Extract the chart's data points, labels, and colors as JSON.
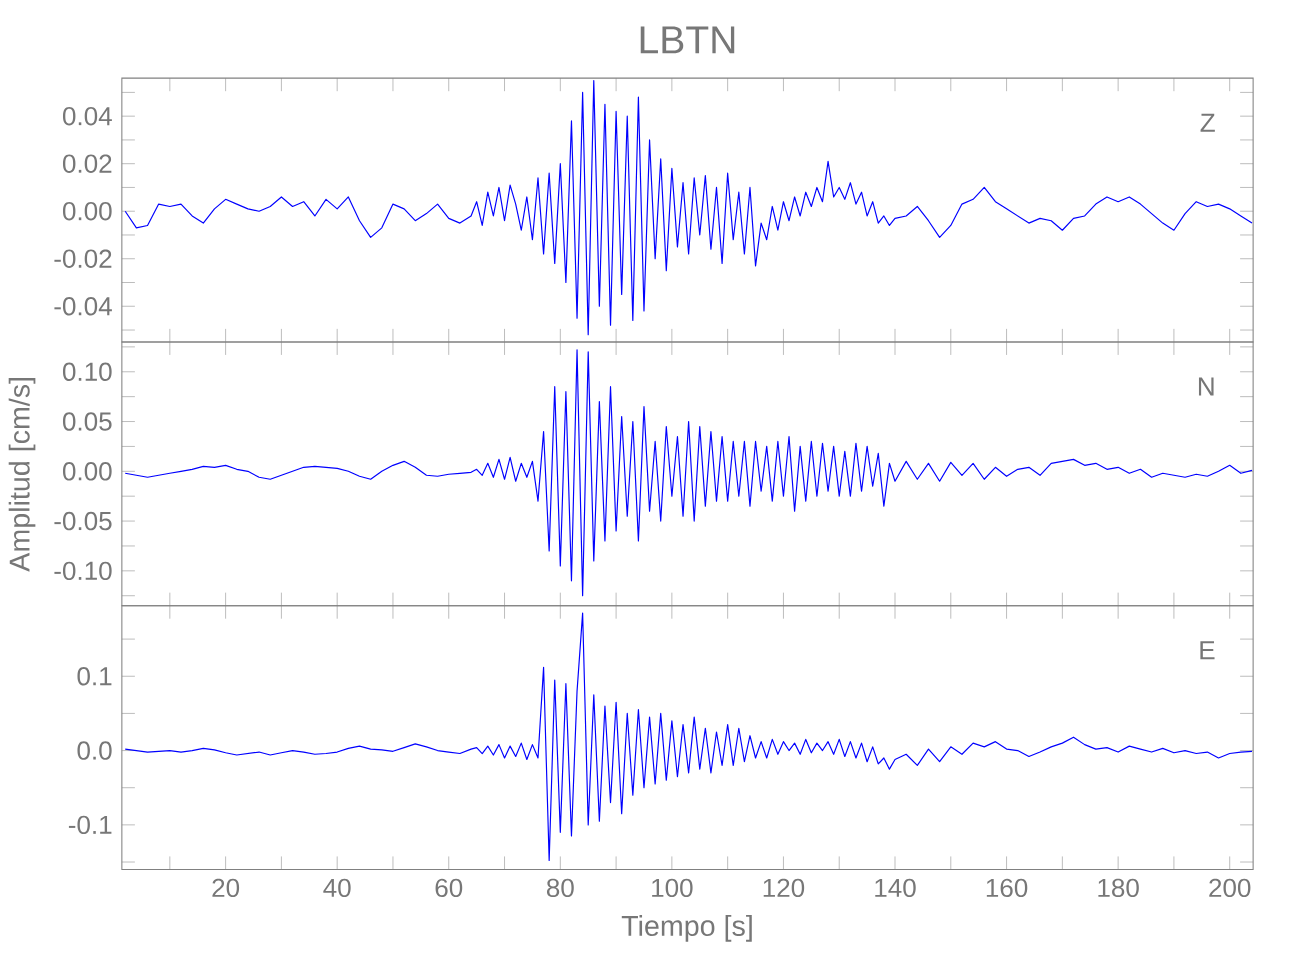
{
  "chart_data": [
    {
      "type": "line",
      "title": "LBTN",
      "annotations": [
        "Z"
      ],
      "color": "#0000ff",
      "tick_labels": "y",
      "xlim": [
        1.4,
        204.2
      ],
      "xticks": [
        {
          "value": 10,
          "label": null
        },
        {
          "value": 20,
          "label": null
        },
        {
          "value": 30,
          "label": null
        },
        {
          "value": 40,
          "label": null
        },
        {
          "value": 50,
          "label": null
        },
        {
          "value": 60,
          "label": null
        },
        {
          "value": 70,
          "label": null
        },
        {
          "value": 80,
          "label": null
        },
        {
          "value": 90,
          "label": null
        },
        {
          "value": 100,
          "label": null
        },
        {
          "value": 110,
          "label": null
        },
        {
          "value": 120,
          "label": null
        },
        {
          "value": 130,
          "label": null
        },
        {
          "value": 140,
          "label": null
        },
        {
          "value": 150,
          "label": null
        },
        {
          "value": 160,
          "label": null
        },
        {
          "value": 170,
          "label": null
        },
        {
          "value": 180,
          "label": null
        },
        {
          "value": 190,
          "label": null
        },
        {
          "value": 200,
          "label": null
        }
      ],
      "ylim": [
        -0.055,
        0.056
      ],
      "yticks": [
        {
          "value": -0.05,
          "label": null
        },
        {
          "value": -0.04,
          "label": "-0.04"
        },
        {
          "value": -0.03,
          "label": null
        },
        {
          "value": -0.02,
          "label": "-0.02"
        },
        {
          "value": -0.01,
          "label": null
        },
        {
          "value": 0,
          "label": "0.00"
        },
        {
          "value": 0.01,
          "label": null
        },
        {
          "value": 0.02,
          "label": "0.02"
        },
        {
          "value": 0.03,
          "label": null
        },
        {
          "value": 0.04,
          "label": "0.04"
        },
        {
          "value": 0.05,
          "label": null
        }
      ],
      "x": [
        2,
        4,
        6,
        8,
        10,
        12,
        14,
        16,
        18,
        20,
        22,
        24,
        26,
        28,
        30,
        32,
        34,
        36,
        38,
        40,
        42,
        44,
        46,
        48,
        50,
        52,
        54,
        56,
        58,
        60,
        62,
        64,
        65,
        66,
        67,
        68,
        69,
        70,
        71,
        72,
        73,
        74,
        75,
        76,
        77,
        78,
        79,
        80,
        81,
        82,
        83,
        84,
        85,
        86,
        87,
        88,
        89,
        90,
        91,
        92,
        93,
        94,
        95,
        96,
        97,
        98,
        99,
        100,
        101,
        102,
        103,
        104,
        105,
        106,
        107,
        108,
        109,
        110,
        111,
        112,
        113,
        114,
        115,
        116,
        117,
        118,
        119,
        120,
        121,
        122,
        123,
        124,
        125,
        126,
        127,
        128,
        129,
        130,
        131,
        132,
        133,
        134,
        135,
        136,
        137,
        138,
        139,
        140,
        142,
        144,
        146,
        148,
        150,
        152,
        154,
        156,
        158,
        160,
        162,
        164,
        166,
        168,
        170,
        172,
        174,
        176,
        178,
        180,
        182,
        184,
        186,
        188,
        190,
        192,
        194,
        196,
        198,
        200,
        202,
        204
      ],
      "values": [
        0.0,
        -0.007,
        -0.006,
        0.003,
        0.002,
        0.003,
        -0.002,
        -0.005,
        0.001,
        0.005,
        0.003,
        0.001,
        0.0,
        0.002,
        0.006,
        0.002,
        0.004,
        -0.002,
        0.005,
        0.001,
        0.006,
        -0.004,
        -0.011,
        -0.007,
        0.003,
        0.001,
        -0.004,
        -0.001,
        0.003,
        -0.003,
        -0.005,
        -0.002,
        0.004,
        -0.006,
        0.008,
        -0.002,
        0.01,
        -0.004,
        0.011,
        0.003,
        -0.008,
        0.006,
        -0.012,
        0.014,
        -0.018,
        0.016,
        -0.022,
        0.02,
        -0.03,
        0.038,
        -0.045,
        0.05,
        -0.052,
        0.055,
        -0.04,
        0.045,
        -0.048,
        0.042,
        -0.035,
        0.04,
        -0.046,
        0.048,
        -0.042,
        0.03,
        -0.02,
        0.022,
        -0.025,
        0.018,
        -0.015,
        0.012,
        -0.018,
        0.014,
        -0.01,
        0.015,
        -0.016,
        0.01,
        -0.022,
        0.016,
        -0.012,
        0.008,
        -0.018,
        0.01,
        -0.023,
        -0.005,
        -0.012,
        0.002,
        -0.008,
        0.004,
        -0.004,
        0.006,
        -0.002,
        0.008,
        0.002,
        0.01,
        0.004,
        0.021,
        0.006,
        0.01,
        0.005,
        0.012,
        0.003,
        0.008,
        -0.002,
        0.004,
        -0.005,
        -0.002,
        -0.006,
        -0.003,
        -0.002,
        0.002,
        -0.004,
        -0.011,
        -0.006,
        0.003,
        0.005,
        0.01,
        0.004,
        0.001,
        -0.002,
        -0.005,
        -0.003,
        -0.004,
        -0.008,
        -0.003,
        -0.002,
        0.003,
        0.006,
        0.004,
        0.006,
        0.003,
        -0.001,
        -0.005,
        -0.008,
        -0.001,
        0.004,
        0.002,
        0.003,
        0.001,
        -0.002,
        -0.005
      ]
    },
    {
      "type": "line",
      "ylabel": "Amplitud  [cm/s]",
      "annotations": [
        "N"
      ],
      "color": "#0000ff",
      "tick_labels": "y",
      "xlim": [
        1.4,
        204.2
      ],
      "xticks": [
        {
          "value": 10,
          "label": null
        },
        {
          "value": 20,
          "label": null
        },
        {
          "value": 30,
          "label": null
        },
        {
          "value": 40,
          "label": null
        },
        {
          "value": 50,
          "label": null
        },
        {
          "value": 60,
          "label": null
        },
        {
          "value": 70,
          "label": null
        },
        {
          "value": 80,
          "label": null
        },
        {
          "value": 90,
          "label": null
        },
        {
          "value": 100,
          "label": null
        },
        {
          "value": 110,
          "label": null
        },
        {
          "value": 120,
          "label": null
        },
        {
          "value": 130,
          "label": null
        },
        {
          "value": 140,
          "label": null
        },
        {
          "value": 150,
          "label": null
        },
        {
          "value": 160,
          "label": null
        },
        {
          "value": 170,
          "label": null
        },
        {
          "value": 180,
          "label": null
        },
        {
          "value": 190,
          "label": null
        },
        {
          "value": 200,
          "label": null
        }
      ],
      "ylim": [
        -0.135,
        0.13
      ],
      "yticks": [
        {
          "value": -0.125,
          "label": null
        },
        {
          "value": -0.1,
          "label": "-0.10"
        },
        {
          "value": -0.075,
          "label": null
        },
        {
          "value": -0.05,
          "label": "-0.05"
        },
        {
          "value": -0.025,
          "label": null
        },
        {
          "value": 0,
          "label": "0.00"
        },
        {
          "value": 0.025,
          "label": null
        },
        {
          "value": 0.05,
          "label": "0.05"
        },
        {
          "value": 0.075,
          "label": null
        },
        {
          "value": 0.1,
          "label": "0.10"
        },
        {
          "value": 0.125,
          "label": null
        }
      ],
      "x": [
        2,
        4,
        6,
        8,
        10,
        12,
        14,
        16,
        18,
        20,
        22,
        24,
        26,
        28,
        30,
        32,
        34,
        36,
        38,
        40,
        42,
        44,
        46,
        48,
        50,
        52,
        54,
        56,
        58,
        60,
        62,
        64,
        65,
        66,
        67,
        68,
        69,
        70,
        71,
        72,
        73,
        74,
        75,
        76,
        77,
        78,
        79,
        80,
        81,
        82,
        83,
        84,
        85,
        86,
        87,
        88,
        89,
        90,
        91,
        92,
        93,
        94,
        95,
        96,
        97,
        98,
        99,
        100,
        101,
        102,
        103,
        104,
        105,
        106,
        107,
        108,
        109,
        110,
        111,
        112,
        113,
        114,
        115,
        116,
        117,
        118,
        119,
        120,
        121,
        122,
        123,
        124,
        125,
        126,
        127,
        128,
        129,
        130,
        131,
        132,
        133,
        134,
        135,
        136,
        137,
        138,
        139,
        140,
        142,
        144,
        146,
        148,
        150,
        152,
        154,
        156,
        158,
        160,
        162,
        164,
        166,
        168,
        170,
        172,
        174,
        176,
        178,
        180,
        182,
        184,
        186,
        188,
        190,
        192,
        194,
        196,
        198,
        200,
        202,
        204
      ],
      "values": [
        -0.002,
        -0.004,
        -0.006,
        -0.004,
        -0.002,
        0.0,
        0.002,
        0.005,
        0.004,
        0.006,
        0.002,
        0.0,
        -0.006,
        -0.008,
        -0.004,
        0.0,
        0.004,
        0.005,
        0.004,
        0.003,
        0.0,
        -0.005,
        -0.008,
        0.0,
        0.006,
        0.01,
        0.004,
        -0.004,
        -0.005,
        -0.003,
        -0.002,
        -0.001,
        0.002,
        -0.004,
        0.008,
        -0.006,
        0.012,
        -0.008,
        0.014,
        -0.01,
        0.008,
        -0.006,
        0.01,
        -0.03,
        0.04,
        -0.08,
        0.085,
        -0.095,
        0.08,
        -0.11,
        0.122,
        -0.125,
        0.12,
        -0.09,
        0.07,
        -0.07,
        0.085,
        -0.06,
        0.055,
        -0.045,
        0.05,
        -0.07,
        0.065,
        -0.04,
        0.03,
        -0.05,
        0.045,
        -0.025,
        0.035,
        -0.045,
        0.05,
        -0.05,
        0.045,
        -0.035,
        0.04,
        -0.03,
        0.035,
        -0.03,
        0.03,
        -0.025,
        0.03,
        -0.035,
        0.03,
        -0.02,
        0.025,
        -0.03,
        0.03,
        -0.025,
        0.035,
        -0.04,
        0.025,
        -0.03,
        0.03,
        -0.025,
        0.028,
        -0.02,
        0.025,
        -0.025,
        0.02,
        -0.025,
        0.028,
        -0.02,
        0.025,
        -0.015,
        0.018,
        -0.035,
        0.008,
        -0.01,
        0.01,
        -0.008,
        0.008,
        -0.01,
        0.009,
        -0.004,
        0.008,
        -0.008,
        0.004,
        -0.005,
        0.002,
        0.004,
        -0.004,
        0.008,
        0.01,
        0.012,
        0.006,
        0.008,
        0.002,
        0.004,
        -0.002,
        0.002,
        -0.006,
        -0.002,
        -0.004,
        -0.006,
        -0.003,
        -0.005,
        0.0,
        0.006,
        -0.002,
        0.001
      ]
    },
    {
      "type": "line",
      "xlabel": "Tiempo  [s]",
      "annotations": [
        "E"
      ],
      "color": "#0000ff",
      "xlim": [
        1.4,
        204.2
      ],
      "xticks": [
        {
          "value": 10,
          "label": null
        },
        {
          "value": 20,
          "label": "20"
        },
        {
          "value": 30,
          "label": null
        },
        {
          "value": 40,
          "label": "40"
        },
        {
          "value": 50,
          "label": null
        },
        {
          "value": 60,
          "label": "60"
        },
        {
          "value": 70,
          "label": null
        },
        {
          "value": 80,
          "label": "80"
        },
        {
          "value": 90,
          "label": null
        },
        {
          "value": 100,
          "label": "100"
        },
        {
          "value": 110,
          "label": null
        },
        {
          "value": 120,
          "label": "120"
        },
        {
          "value": 130,
          "label": null
        },
        {
          "value": 140,
          "label": "140"
        },
        {
          "value": 150,
          "label": null
        },
        {
          "value": 160,
          "label": "160"
        },
        {
          "value": 170,
          "label": null
        },
        {
          "value": 180,
          "label": "180"
        },
        {
          "value": 190,
          "label": null
        },
        {
          "value": 200,
          "label": "200"
        }
      ],
      "ylim": [
        -0.16,
        0.195
      ],
      "yticks": [
        {
          "value": -0.15,
          "label": null
        },
        {
          "value": -0.1,
          "label": "-0.1"
        },
        {
          "value": -0.05,
          "label": null
        },
        {
          "value": 0,
          "label": "0.0"
        },
        {
          "value": 0.05,
          "label": null
        },
        {
          "value": 0.1,
          "label": "0.1"
        },
        {
          "value": 0.15,
          "label": null
        }
      ],
      "x": [
        2,
        4,
        6,
        8,
        10,
        12,
        14,
        16,
        18,
        20,
        22,
        24,
        26,
        28,
        30,
        32,
        34,
        36,
        38,
        40,
        42,
        44,
        46,
        48,
        50,
        52,
        54,
        56,
        58,
        60,
        62,
        64,
        65,
        66,
        67,
        68,
        69,
        70,
        71,
        72,
        73,
        74,
        75,
        76,
        77,
        78,
        79,
        80,
        81,
        82,
        83,
        84,
        85,
        86,
        87,
        88,
        89,
        90,
        91,
        92,
        93,
        94,
        95,
        96,
        97,
        98,
        99,
        100,
        101,
        102,
        103,
        104,
        105,
        106,
        107,
        108,
        109,
        110,
        111,
        112,
        113,
        114,
        115,
        116,
        117,
        118,
        119,
        120,
        121,
        122,
        123,
        124,
        125,
        126,
        127,
        128,
        129,
        130,
        131,
        132,
        133,
        134,
        135,
        136,
        137,
        138,
        139,
        140,
        142,
        144,
        146,
        148,
        150,
        152,
        154,
        156,
        158,
        160,
        162,
        164,
        166,
        168,
        170,
        172,
        174,
        176,
        178,
        180,
        182,
        184,
        186,
        188,
        190,
        192,
        194,
        196,
        198,
        200,
        202,
        204
      ],
      "values": [
        0.002,
        0.0,
        -0.002,
        -0.001,
        0.0,
        -0.002,
        0.0,
        0.003,
        0.001,
        -0.003,
        -0.006,
        -0.004,
        -0.002,
        -0.006,
        -0.003,
        0.0,
        -0.002,
        -0.005,
        -0.004,
        -0.002,
        0.003,
        0.006,
        0.002,
        0.001,
        -0.001,
        0.004,
        0.009,
        0.005,
        0.0,
        -0.002,
        -0.004,
        0.002,
        0.004,
        -0.004,
        0.006,
        -0.006,
        0.008,
        -0.01,
        0.006,
        -0.008,
        0.01,
        -0.012,
        0.008,
        -0.01,
        0.112,
        -0.148,
        0.095,
        -0.11,
        0.09,
        -0.115,
        0.08,
        0.185,
        -0.1,
        0.075,
        -0.095,
        0.06,
        -0.07,
        0.065,
        -0.085,
        0.05,
        -0.06,
        0.055,
        -0.05,
        0.045,
        -0.045,
        0.05,
        -0.04,
        0.04,
        -0.035,
        0.035,
        -0.03,
        0.045,
        -0.025,
        0.03,
        -0.03,
        0.025,
        -0.02,
        0.035,
        -0.02,
        0.03,
        -0.015,
        0.02,
        -0.01,
        0.012,
        -0.01,
        0.015,
        -0.005,
        0.012,
        0.0,
        0.01,
        -0.005,
        0.015,
        -0.003,
        0.01,
        0.0,
        0.012,
        -0.005,
        0.015,
        -0.008,
        0.012,
        -0.01,
        0.01,
        -0.015,
        0.005,
        -0.018,
        -0.01,
        -0.025,
        -0.012,
        -0.005,
        -0.02,
        0.002,
        -0.015,
        0.005,
        -0.005,
        0.01,
        0.005,
        0.012,
        0.002,
        0.0,
        -0.008,
        -0.002,
        0.005,
        0.01,
        0.018,
        0.008,
        0.002,
        0.004,
        -0.002,
        0.006,
        0.002,
        -0.002,
        0.003,
        -0.003,
        0.0,
        -0.004,
        -0.002,
        -0.01,
        -0.004,
        -0.002,
        -0.001
      ]
    }
  ]
}
